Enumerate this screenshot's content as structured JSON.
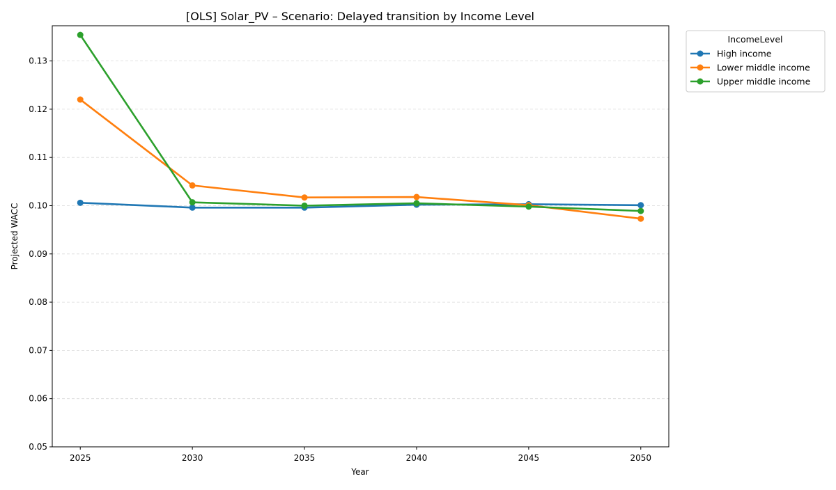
{
  "chart_data": {
    "type": "line",
    "title": "[OLS] Solar_PV – Scenario: Delayed transition by Income Level",
    "xlabel": "Year",
    "ylabel": "Projected WACC",
    "x": [
      2025,
      2030,
      2035,
      2040,
      2045,
      2050
    ],
    "x_ticks": [
      "2025",
      "2030",
      "2035",
      "2040",
      "2045",
      "2050"
    ],
    "xlim": [
      2023.75,
      2051.25
    ],
    "ylim": [
      0.05,
      0.1373
    ],
    "y_ticks": [
      "0.05",
      "0.06",
      "0.07",
      "0.08",
      "0.09",
      "0.10",
      "0.11",
      "0.12",
      "0.13"
    ],
    "grid": "y-dashed",
    "legend": {
      "title": "IncomeLevel",
      "placement": "outside-top-right"
    },
    "series": [
      {
        "name": "High income",
        "color": "#1f77b4",
        "values": [
          0.1006,
          0.0996,
          0.0996,
          0.1002,
          0.1003,
          0.1001
        ]
      },
      {
        "name": "Lower middle income",
        "color": "#ff7f0e",
        "values": [
          0.122,
          0.1042,
          0.1017,
          0.1018,
          0.1001,
          0.0973
        ]
      },
      {
        "name": "Upper middle income",
        "color": "#2ca02c",
        "values": [
          0.1354,
          0.1007,
          0.1,
          0.1005,
          0.0998,
          0.0989
        ]
      }
    ]
  }
}
